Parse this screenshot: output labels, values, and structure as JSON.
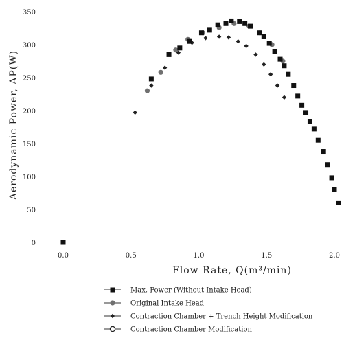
{
  "chart_data": {
    "type": "scatter",
    "xlabel": "Flow Rate, Q(m³/min)",
    "ylabel": "Aerodynamic Power, AP(W)",
    "xlim": [
      0.0,
      2.0
    ],
    "ylim": [
      0,
      350
    ],
    "xticks": [
      "0.0",
      "0.5",
      "1.0",
      "1.5",
      "2.0"
    ],
    "yticks": [
      "0",
      "50",
      "100",
      "150",
      "200",
      "250",
      "300",
      "350"
    ],
    "grid": false,
    "legend_position": "bottom",
    "series": [
      {
        "name": "Max. Power (Without Intake Head)",
        "marker": "filled-square",
        "color": "#111111",
        "x": [
          0.0,
          0.65,
          0.78,
          0.86,
          0.93,
          1.02,
          1.08,
          1.14,
          1.2,
          1.24,
          1.3,
          1.34,
          1.38,
          1.45,
          1.48,
          1.52,
          1.56,
          1.6,
          1.63,
          1.66,
          1.7,
          1.73,
          1.76,
          1.79,
          1.82,
          1.85,
          1.88,
          1.92,
          1.95,
          1.98,
          2.0,
          2.03
        ],
        "y": [
          0,
          248,
          285,
          295,
          305,
          318,
          322,
          330,
          332,
          336,
          335,
          332,
          328,
          318,
          312,
          302,
          290,
          278,
          268,
          255,
          238,
          222,
          208,
          197,
          183,
          172,
          155,
          138,
          118,
          98,
          80,
          60
        ]
      },
      {
        "name": "Original Intake Head",
        "marker": "filled-circle",
        "color": "#707070",
        "x": [
          0.62,
          0.72,
          0.83,
          0.92,
          1.03,
          1.15,
          1.26,
          1.37,
          1.45,
          1.54,
          1.62
        ],
        "y": [
          230,
          258,
          292,
          308,
          318,
          326,
          332,
          328,
          318,
          300,
          275
        ]
      },
      {
        "name": "Contraction Chamber + Trench Height Modification",
        "marker": "filled-diamond",
        "color": "#222222",
        "x": [
          0.53,
          0.65,
          0.75,
          0.85,
          0.95,
          1.05,
          1.15,
          1.22,
          1.29,
          1.35,
          1.42,
          1.48,
          1.53,
          1.58,
          1.63
        ],
        "y": [
          197,
          238,
          265,
          288,
          303,
          310,
          312,
          311,
          305,
          298,
          285,
          270,
          255,
          238,
          220
        ]
      },
      {
        "name": "Contraction Chamber Modification",
        "marker": "open-circle",
        "color": "#222222",
        "x": [],
        "y": []
      }
    ]
  }
}
